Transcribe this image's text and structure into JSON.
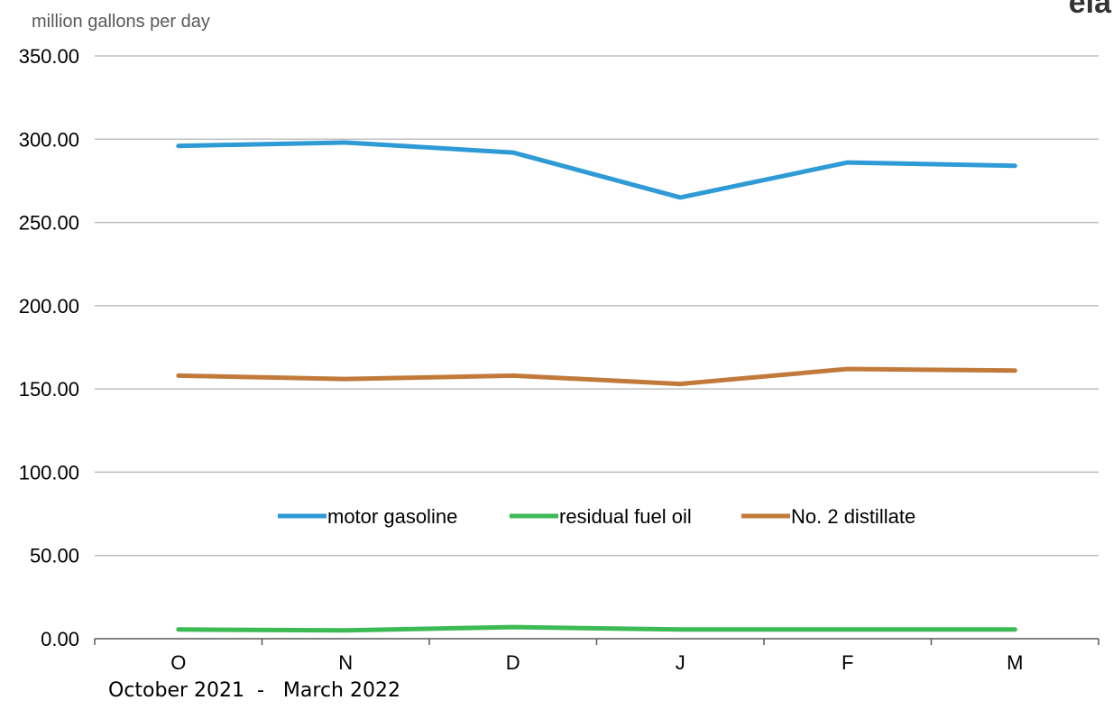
{
  "logo_text": "eia",
  "footnote": "October 2021  -   March 2022",
  "chart_data": {
    "type": "line",
    "title": "",
    "ylabel": "million gallons per day",
    "xlabel": "",
    "categories": [
      "O",
      "N",
      "D",
      "J",
      "F",
      "M"
    ],
    "ylim": [
      0,
      350
    ],
    "yticks": [
      "0.00",
      "50.00",
      "100.00",
      "150.00",
      "200.00",
      "250.00",
      "300.00",
      "350.00"
    ],
    "grid": true,
    "legend_position": "center",
    "series": [
      {
        "name": "motor gasoline",
        "color": "#2e9ad6",
        "values": [
          296,
          298,
          292,
          265,
          286,
          284
        ]
      },
      {
        "name": "residual fuel oil",
        "color": "#3cba54",
        "values": [
          5.5,
          5,
          7,
          5.5,
          5.5,
          5.5
        ]
      },
      {
        "name": "No. 2 distillate",
        "color": "#c27a3a",
        "values": [
          158,
          156,
          158,
          153,
          162,
          161
        ]
      }
    ]
  }
}
